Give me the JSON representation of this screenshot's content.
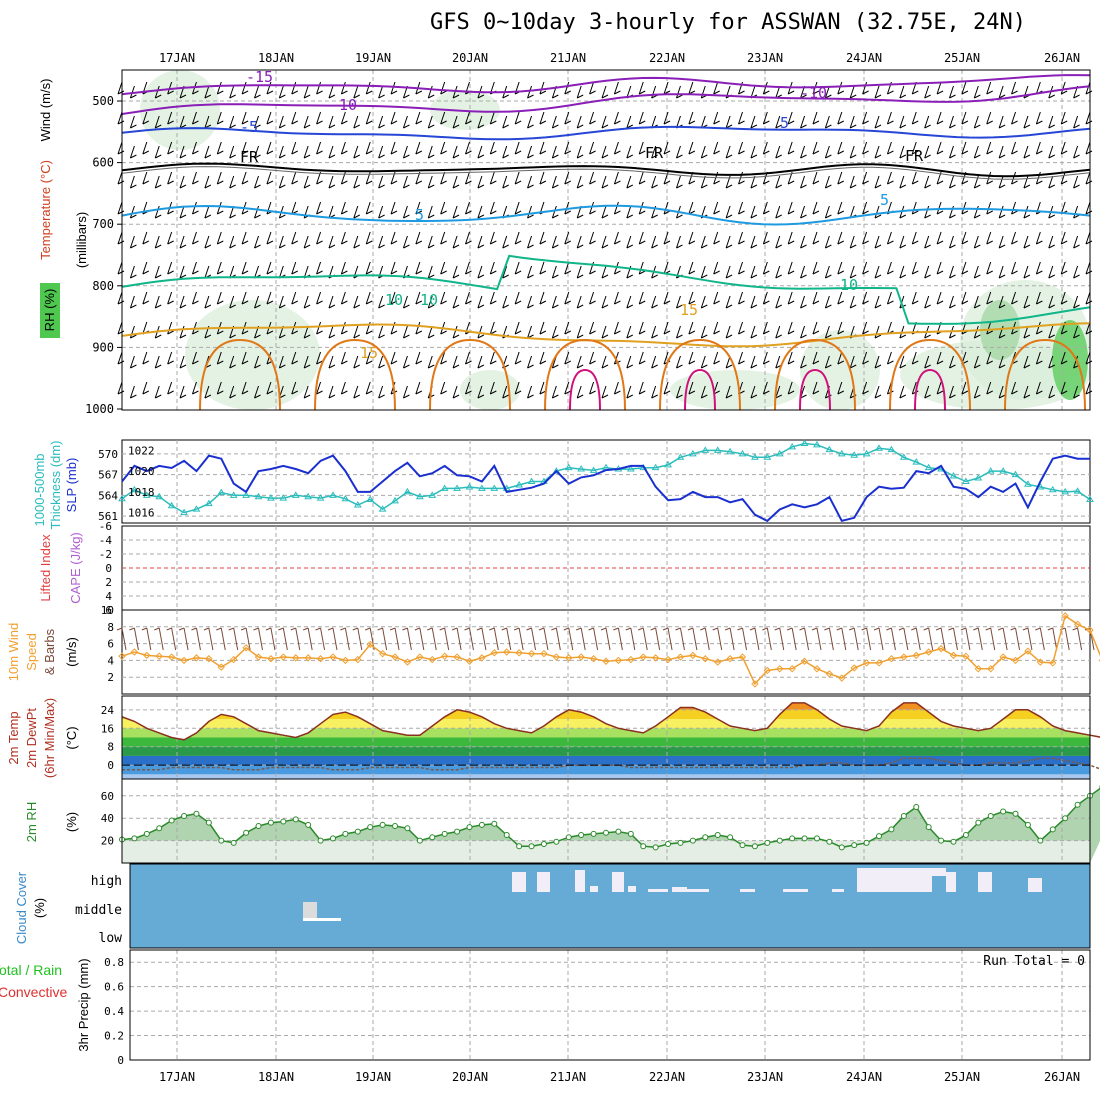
{
  "title": "GFS 0~10day 3-hourly for ASSWAN (32.75E, 24N)",
  "colors": {
    "temp_purple": "#8a1fb8",
    "temp_blue": "#2646d6",
    "temp_lightblue": "#1e9ae0",
    "temp_green": "#10b58a",
    "temp_orange": "#e0a020",
    "temp_darkorange": "#e07818",
    "temp_magenta": "#d0107a",
    "slp": "#1a2fd0",
    "thickness": "#2bbcbc",
    "wind10": "#f0a030",
    "rh": "#2a8a2a",
    "cloud": "#66aad6",
    "grid": "#aaaaaa",
    "lifted_ref": "#e04040"
  },
  "time_labels": [
    "17JAN",
    "18JAN",
    "19JAN",
    "20JAN",
    "21JAN",
    "22JAN",
    "23JAN",
    "24JAN",
    "25JAN",
    "26JAN"
  ],
  "panels": {
    "upper": {
      "ylabel_wind": "Wind (m/s)",
      "ylabel_temp": "Temperature (°C)",
      "ylabel_rh": "RH (%)",
      "ylabel_pres": "(millibars)",
      "ticks": [
        "500",
        "600",
        "700",
        "800",
        "900",
        "1000"
      ],
      "contour_labels": [
        "-15",
        "-10",
        "-10",
        "-5",
        "5",
        "FR",
        "FR",
        "FR",
        "5",
        "5",
        "10",
        "10",
        "15",
        "15",
        "10"
      ]
    },
    "slp_thick": {
      "ylabel_a": "1000-500mb",
      "ylabel_b": "Thickness (dm)",
      "ylabel_c": "SLP (mb)",
      "left_ticks": [
        "570",
        "567",
        "564",
        "561"
      ],
      "right_ticks": [
        "1022",
        "1020",
        "1018",
        "1016"
      ]
    },
    "lifted": {
      "ylabel_a": "Lifted Index",
      "ylabel_b": "CAPE (J/kg)",
      "ticks": [
        "-6",
        "-4",
        "-2",
        "0",
        "2",
        "4",
        "6"
      ]
    },
    "wind10": {
      "ylabel_a": "10m Wind",
      "ylabel_b": "Speed",
      "ylabel_c": "& Barbs",
      "ylabel_d": "(m/s)",
      "ticks": [
        "10",
        "8",
        "6",
        "4",
        "2"
      ]
    },
    "temp2m": {
      "ylabel_a": "2m Temp",
      "ylabel_b": "2m DewPt",
      "ylabel_c": "(6hr Min/Max)",
      "ylabel_d": "(°C)",
      "ticks": [
        "24",
        "16",
        "8",
        "0"
      ]
    },
    "rh2m": {
      "ylabel_a": "2m RH",
      "ylabel_b": "(%)",
      "ticks": [
        "60",
        "40",
        "20"
      ]
    },
    "cloud": {
      "ylabel_a": "Cloud Cover",
      "ylabel_b": "(%)",
      "ticks": [
        "high",
        "middle",
        "low"
      ]
    },
    "precip": {
      "ylabel_a": "Total / Rain",
      "ylabel_b": "Convective",
      "ylabel_c": "3hr Precip (mm)",
      "ticks": [
        "0.8",
        "0.6",
        "0.4",
        "0.2",
        "0"
      ],
      "run_total": "Run Total = 0"
    }
  },
  "chart_data": [
    {
      "type": "line",
      "title": "GFS 0~10day 3-hourly for ASSWAN (32.75E, 24N)",
      "panel": "SLP and 1000-500mb Thickness",
      "x": [
        "16JAN12",
        "16JAN15",
        "16JAN18",
        "16JAN21",
        "17JAN00",
        "17JAN03",
        "17JAN06",
        "17JAN09",
        "17JAN12",
        "17JAN15",
        "17JAN18",
        "17JAN21",
        "18JAN00",
        "18JAN03",
        "18JAN06",
        "18JAN09",
        "18JAN12",
        "18JAN15",
        "18JAN18",
        "18JAN21",
        "19JAN00",
        "19JAN03",
        "19JAN06",
        "19JAN09",
        "19JAN12",
        "19JAN15",
        "19JAN18",
        "19JAN21",
        "20JAN00",
        "20JAN03",
        "20JAN06",
        "20JAN09",
        "20JAN12",
        "20JAN15",
        "20JAN18",
        "20JAN21",
        "21JAN00",
        "21JAN03",
        "21JAN06",
        "21JAN09",
        "21JAN12",
        "21JAN15",
        "21JAN18",
        "21JAN21",
        "22JAN00",
        "22JAN03",
        "22JAN06",
        "22JAN09",
        "22JAN12",
        "22JAN15",
        "22JAN18",
        "22JAN21",
        "23JAN00",
        "23JAN03",
        "23JAN06",
        "23JAN09",
        "23JAN12",
        "23JAN15",
        "23JAN18",
        "23JAN21",
        "24JAN00",
        "24JAN03",
        "24JAN06",
        "24JAN09",
        "24JAN12",
        "24JAN15",
        "24JAN18",
        "24JAN21",
        "25JAN00",
        "25JAN03",
        "25JAN06",
        "25JAN09",
        "25JAN12",
        "25JAN15",
        "25JAN18",
        "25JAN21",
        "26JAN00",
        "26JAN03",
        "26JAN06"
      ],
      "series": [
        {
          "name": "SLP (mb)",
          "axis": "right",
          "values": [
            1019.0,
            1020.5,
            1020.0,
            1020.5,
            1020.3,
            1021.0,
            1020.0,
            1021.5,
            1021.2,
            1018.8,
            1018.0,
            1020.0,
            1020.2,
            1020.5,
            1020.2,
            1019.8,
            1021.0,
            1021.5,
            1020.0,
            1018.0,
            1018.0,
            1019.0,
            1020.0,
            1020.8,
            1019.5,
            1019.8,
            1020.5,
            1019.6,
            1019.5,
            1019.0,
            1020.5,
            1018.0,
            1018.2,
            1018.4,
            1018.8,
            1020.0,
            1018.8,
            1019.4,
            1019.6,
            1020.1,
            1020.2,
            1020.5,
            1020.5,
            1018.5,
            1017.2,
            1017.3,
            1018.0,
            1017.5,
            1017.5,
            1017.0,
            1017.3,
            1015.8,
            1015.2,
            1016.3,
            1016.8,
            1016.5,
            1016.8,
            1017.5,
            1015.2,
            1015.5,
            1017.5,
            1018.5,
            1018.3,
            1018.4,
            1020.0,
            1019.8,
            1020.5,
            1018.5,
            1018.3,
            1017.5,
            1018.5,
            1018.0,
            1018.8,
            1016.5,
            1019.0,
            1021.2,
            1021.5,
            1021.2,
            1021.2
          ]
        },
        {
          "name": "1000-500mb Thickness (dm)",
          "axis": "left",
          "values": [
            563.5,
            564.8,
            564.0,
            563.8,
            562.5,
            561.5,
            562.0,
            562.8,
            564.4,
            564.0,
            564.0,
            563.8,
            563.6,
            563.6,
            564.0,
            563.8,
            563.6,
            564.0,
            563.5,
            562.6,
            563.4,
            562.0,
            563.2,
            564.5,
            563.8,
            564.0,
            565.0,
            565.0,
            565.2,
            565.0,
            565.0,
            565.0,
            565.5,
            566.0,
            566.0,
            567.5,
            568.0,
            567.8,
            567.6,
            568.0,
            567.8,
            567.8,
            568.0,
            568.0,
            568.4,
            569.5,
            570.0,
            570.5,
            570.5,
            570.3,
            570.0,
            569.5,
            569.5,
            570.0,
            571.0,
            571.5,
            571.3,
            570.6,
            570.0,
            569.8,
            570.0,
            570.8,
            570.6,
            569.5,
            568.8,
            568.0,
            567.8,
            566.8,
            566.0,
            566.5,
            567.5,
            567.5,
            567.0,
            565.6,
            565.2,
            564.8,
            564.5,
            564.6,
            563.4
          ]
        }
      ],
      "ylim_left": [
        560,
        572
      ],
      "ylim_right": [
        1015,
        1023
      ]
    },
    {
      "type": "line",
      "panel": "10m Wind Speed",
      "x": "same as SLP panel",
      "series": [
        {
          "name": "10m Wind Speed (m/s)",
          "values": [
            4.5,
            5.0,
            4.6,
            4.5,
            4.4,
            4.0,
            4.3,
            4.2,
            3.2,
            4.1,
            5.5,
            4.4,
            4.2,
            4.4,
            4.3,
            4.3,
            4.2,
            4.4,
            4.0,
            4.1,
            5.9,
            4.8,
            4.4,
            3.8,
            4.4,
            4.1,
            4.5,
            4.4,
            3.9,
            4.3,
            4.9,
            5.0,
            4.9,
            4.8,
            4.8,
            4.4,
            4.3,
            4.4,
            4.2,
            3.9,
            4.0,
            4.1,
            4.4,
            4.3,
            4.1,
            4.4,
            4.6,
            4.2,
            3.8,
            4.2,
            4.4,
            1.2,
            2.8,
            3.0,
            3.0,
            3.9,
            3.0,
            2.4,
            1.9,
            3.1,
            3.7,
            3.7,
            4.2,
            4.4,
            4.6,
            5.0,
            5.4,
            4.6,
            4.5,
            3.0,
            3.0,
            4.4,
            4.0,
            5.1,
            3.8,
            3.7,
            9.3,
            8.3,
            7.6,
            4.0,
            3.8,
            3.6,
            3.8
          ]
        }
      ],
      "ylim": [
        0,
        10
      ]
    },
    {
      "type": "area",
      "panel": "2m RH",
      "x": "same as SLP panel",
      "series": [
        {
          "name": "2m RH (%)",
          "values": [
            21,
            22,
            26,
            31,
            38,
            42,
            44,
            36,
            20,
            18,
            27,
            33,
            36,
            37,
            39,
            34,
            20,
            22,
            26,
            28,
            32,
            34,
            33,
            31,
            20,
            23,
            26,
            28,
            32,
            34,
            35,
            25,
            15,
            15,
            17,
            19,
            23,
            25,
            26,
            27,
            28,
            26,
            15,
            14,
            17,
            18,
            20,
            23,
            25,
            23,
            16,
            15,
            18,
            20,
            22,
            22,
            22,
            19,
            14,
            16,
            18,
            24,
            30,
            42,
            50,
            32,
            20,
            19,
            25,
            36,
            42,
            46,
            44,
            34,
            20,
            30,
            40,
            52,
            60,
            68,
            72,
            73
          ]
        }
      ],
      "ylim": [
        0,
        75
      ]
    },
    {
      "type": "area",
      "panel": "2m Temp and DewPt",
      "x": "same as SLP panel",
      "series": [
        {
          "name": "2m Temp (°C)",
          "values": [
            21,
            19,
            16,
            14,
            12,
            11,
            14,
            19,
            22,
            21,
            18,
            15,
            14,
            13,
            12,
            14,
            18,
            22,
            23,
            21,
            18,
            15,
            14,
            13,
            13,
            17,
            21,
            24,
            23,
            21,
            18,
            16,
            15,
            14,
            17,
            21,
            24,
            23,
            21,
            18,
            16,
            15,
            14,
            17,
            21,
            25,
            25,
            23,
            20,
            17,
            16,
            15,
            16,
            22,
            27,
            27,
            24,
            20,
            17,
            16,
            15,
            17,
            23,
            27,
            27,
            23,
            19,
            17,
            16,
            15,
            16,
            20,
            24,
            24,
            21,
            17,
            15,
            14,
            13,
            12,
            15,
            18,
            18,
            14,
            13,
            12,
            11,
            12,
            12
          ]
        },
        {
          "name": "2m DewPt (°C)",
          "values": [
            -2,
            -2,
            -2,
            -2,
            -1,
            -1,
            -1,
            -1,
            -1,
            -2,
            -2,
            -2,
            -1,
            -1,
            -1,
            -1,
            -1,
            -2,
            -2,
            -2,
            -1,
            -1,
            -1,
            -1,
            -1,
            -2,
            -2,
            -2,
            -1,
            -1,
            -1,
            -1,
            -1,
            -1,
            -1,
            -1,
            0,
            0,
            0,
            0,
            0,
            -1,
            -1,
            -1,
            -1,
            -1,
            -1,
            -1,
            -1,
            -1,
            -1,
            -1,
            -1,
            -1,
            -1,
            0,
            0,
            1,
            1,
            0,
            0,
            0,
            1,
            3,
            3,
            3,
            2,
            1,
            0,
            0,
            1,
            1,
            1,
            2,
            3,
            3,
            2,
            1,
            0,
            -2,
            0,
            1,
            2,
            3,
            4,
            6
          ]
        }
      ],
      "ylim": [
        -6,
        30
      ]
    },
    {
      "type": "bar",
      "panel": "Cloud Cover",
      "series": [
        {
          "name": "high",
          "values": [
            0,
            0,
            0,
            0,
            0,
            0,
            0,
            0,
            0,
            0,
            0,
            0,
            0,
            0,
            0,
            0,
            0,
            0,
            0,
            0,
            0,
            0,
            0,
            0,
            0,
            0,
            0,
            0,
            0,
            0,
            0,
            0,
            0,
            0,
            0,
            0,
            0,
            0,
            0,
            0,
            0,
            0,
            0,
            0,
            0,
            0,
            0,
            0,
            0,
            0,
            0,
            0,
            0,
            0,
            0,
            0,
            0,
            0,
            0,
            0,
            0,
            0,
            0,
            0,
            0,
            0,
            0,
            0,
            0,
            0,
            0,
            0,
            0,
            0,
            0,
            0,
            0,
            0,
            0,
            0,
            0,
            0,
            0
          ]
        },
        {
          "name": "middle",
          "values": [
            0,
            0,
            0,
            0,
            0,
            0,
            0,
            0,
            0,
            0,
            0,
            0,
            0,
            0,
            0,
            0,
            0,
            0,
            0,
            0,
            0,
            0,
            0,
            0,
            0,
            0,
            0,
            0,
            0,
            0,
            0,
            0,
            0,
            0,
            0,
            0,
            0,
            0,
            0,
            0,
            0,
            0,
            0,
            0,
            0,
            0,
            0,
            0,
            0,
            0,
            0,
            0,
            0,
            0,
            0,
            0,
            0,
            0,
            0,
            0,
            0,
            0,
            0,
            0,
            0,
            0,
            0,
            0,
            0,
            0,
            0,
            0,
            0,
            0,
            0,
            0,
            0,
            0,
            0,
            0,
            0,
            0,
            0
          ]
        }
      ]
    },
    {
      "type": "bar",
      "panel": "3hr Precip (mm)",
      "series": [
        {
          "name": "Total / Rain",
          "values": []
        },
        {
          "name": "Convective",
          "values": []
        }
      ],
      "ylim": [
        0,
        0.9
      ]
    }
  ]
}
